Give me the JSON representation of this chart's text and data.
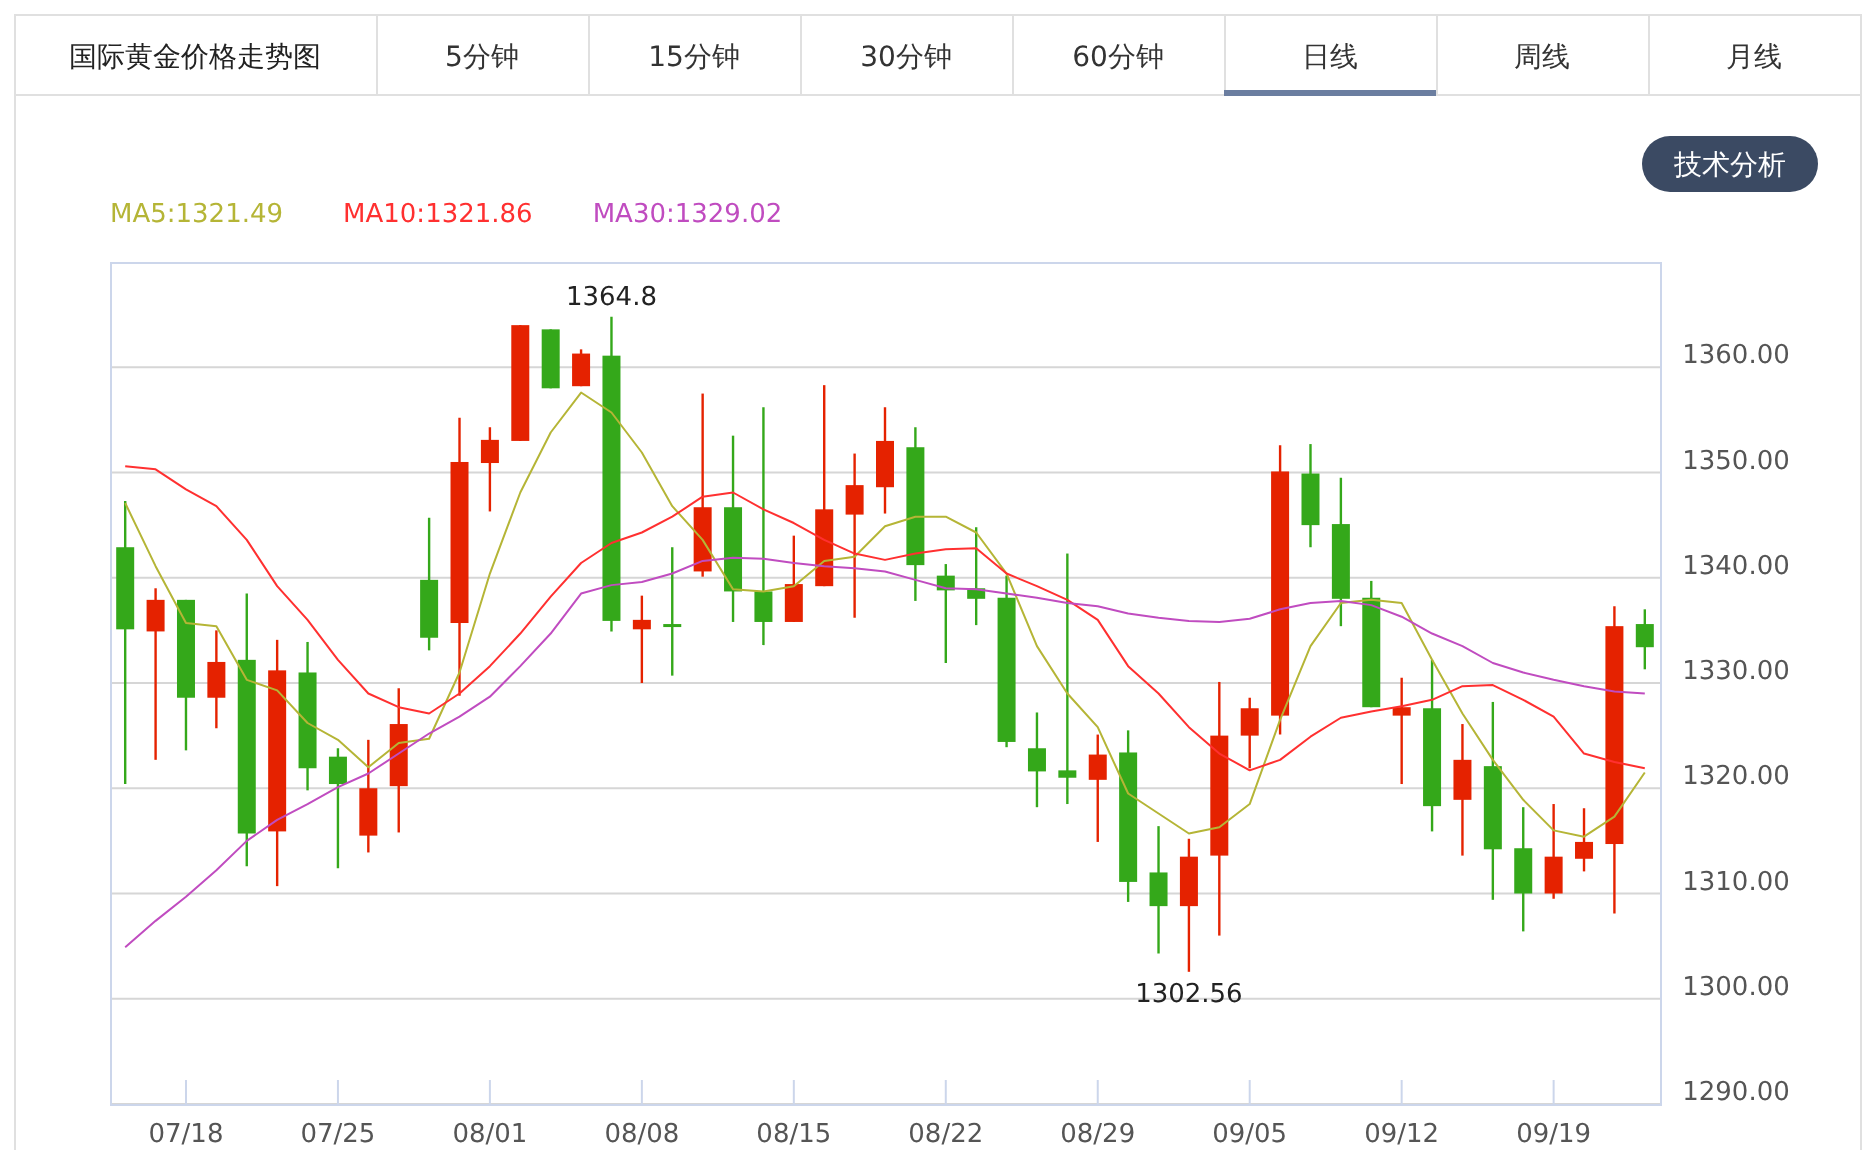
{
  "chart_data": {
    "type": "candlestick",
    "title": "国际黄金价格走势图",
    "annotations": [
      "5分钟",
      "15分钟",
      "30分钟",
      "60分钟",
      "日线",
      "周线",
      "月线",
      "技术分析",
      {
        "text": "1364.8",
        "y": 1364.8
      },
      {
        "text": "1302.56",
        "y": 1302.56
      }
    ],
    "categories": [
      null,
      null,
      "07/18",
      null,
      null,
      null,
      null,
      "07/25",
      null,
      null,
      null,
      null,
      "08/01",
      null,
      null,
      null,
      null,
      "08/08",
      null,
      null,
      null,
      null,
      "08/15",
      null,
      null,
      null,
      null,
      "08/22",
      null,
      null,
      null,
      null,
      "08/29",
      null,
      null,
      null,
      null,
      "09/05",
      null,
      null,
      null,
      null,
      "09/12",
      null,
      null,
      null,
      null,
      "09/19",
      null,
      null,
      null
    ],
    "ohlc": [
      [
        1342.9,
        1347.3,
        1320.4,
        1335.1
      ],
      [
        1334.9,
        1339.0,
        1322.7,
        1337.9
      ],
      [
        1337.9,
        1337.9,
        1323.6,
        1328.6
      ],
      [
        1328.6,
        1335.0,
        1325.7,
        1332.0
      ],
      [
        1332.2,
        1338.5,
        1312.6,
        1315.7
      ],
      [
        1315.9,
        1334.1,
        1310.7,
        1331.2
      ],
      [
        1331.0,
        1333.9,
        1319.8,
        1321.9
      ],
      [
        1323.0,
        1323.8,
        1312.4,
        1320.4
      ],
      [
        1315.5,
        1324.6,
        1313.9,
        1320.0
      ],
      [
        1320.2,
        1329.5,
        1315.8,
        1326.1
      ],
      [
        1339.8,
        1345.7,
        1333.1,
        1334.3
      ],
      [
        1335.7,
        1355.2,
        1328.8,
        1351.0
      ],
      [
        1350.9,
        1354.3,
        1346.3,
        1353.1
      ],
      [
        1353.0,
        1364.0,
        1353.0,
        1364.0
      ],
      [
        1363.6,
        1363.6,
        1358.0,
        1358.0
      ],
      [
        1358.2,
        1361.7,
        1358.2,
        1361.3
      ],
      [
        1361.1,
        1364.8,
        1334.9,
        1335.9
      ],
      [
        1335.1,
        1338.3,
        1330.0,
        1336.0
      ],
      [
        1335.6,
        1342.9,
        1330.7,
        1335.4
      ],
      [
        1340.6,
        1357.5,
        1340.1,
        1346.7
      ],
      [
        1346.7,
        1353.5,
        1335.8,
        1338.7
      ],
      [
        1338.7,
        1356.2,
        1333.6,
        1335.8
      ],
      [
        1335.8,
        1344.0,
        1335.8,
        1339.4
      ],
      [
        1339.2,
        1358.3,
        1339.2,
        1346.5
      ],
      [
        1346.0,
        1351.8,
        1336.2,
        1348.8
      ],
      [
        1348.6,
        1356.2,
        1346.1,
        1353.0
      ],
      [
        1352.4,
        1354.3,
        1337.8,
        1341.2
      ],
      [
        1340.2,
        1341.3,
        1331.9,
        1338.8
      ],
      [
        1339.0,
        1344.8,
        1335.5,
        1338.0
      ],
      [
        1338.1,
        1340.2,
        1323.9,
        1324.4
      ],
      [
        1323.8,
        1327.2,
        1318.2,
        1321.6
      ],
      [
        1321.7,
        1342.3,
        1318.5,
        1321.0
      ],
      [
        1320.8,
        1325.1,
        1314.9,
        1323.2
      ],
      [
        1323.4,
        1325.5,
        1309.2,
        1311.1
      ],
      [
        1312.0,
        1316.4,
        1304.3,
        1308.8
      ],
      [
        1308.8,
        1315.2,
        1302.56,
        1313.5
      ],
      [
        1313.6,
        1330.1,
        1306.0,
        1325.0
      ],
      [
        1325.0,
        1328.6,
        1321.9,
        1327.6
      ],
      [
        1326.9,
        1352.6,
        1325.1,
        1350.1
      ],
      [
        1349.9,
        1352.7,
        1342.9,
        1345.0
      ],
      [
        1345.1,
        1349.5,
        1335.4,
        1338.0
      ],
      [
        1338.1,
        1339.7,
        1327.7,
        1327.7
      ],
      [
        1326.9,
        1330.5,
        1320.4,
        1327.7
      ],
      [
        1327.6,
        1332.2,
        1315.9,
        1318.3
      ],
      [
        1318.9,
        1326.1,
        1313.6,
        1322.7
      ],
      [
        1322.1,
        1328.2,
        1309.4,
        1314.2
      ],
      [
        1314.3,
        1318.2,
        1306.4,
        1310.0
      ],
      [
        1310.0,
        1318.5,
        1309.5,
        1313.5
      ],
      [
        1313.3,
        1318.1,
        1312.1,
        1314.9
      ],
      [
        1314.7,
        1337.3,
        1308.1,
        1335.4
      ],
      [
        1335.6,
        1337.0,
        1331.3,
        1333.4
      ]
    ],
    "colors": [
      "#34a81a",
      "#e52200",
      "#34a81a",
      "#e52200",
      "#34a81a",
      "#e52200",
      "#34a81a",
      "#34a81a",
      "#e52200",
      "#e52200",
      "#34a81a",
      "#e52200",
      "#e52200",
      "#e52200",
      "#34a81a",
      "#e52200",
      "#34a81a",
      "#e52200",
      "#34a81a",
      "#e52200",
      "#34a81a",
      "#34a81a",
      "#e52200",
      "#e52200",
      "#e52200",
      "#e52200",
      "#34a81a",
      "#34a81a",
      "#34a81a",
      "#34a81a",
      "#34a81a",
      "#34a81a",
      "#e52200",
      "#34a81a",
      "#34a81a",
      "#e52200",
      "#e52200",
      "#e52200",
      "#e52200",
      "#34a81a",
      "#34a81a",
      "#34a81a",
      "#e52200",
      "#34a81a",
      "#e52200",
      "#34a81a",
      "#34a81a",
      "#e52200",
      "#e52200",
      "#e52200",
      "#34a81a"
    ],
    "series": [
      {
        "name": "MA5:1321.49",
        "type": "line",
        "color": "#b5b536",
        "values": [
          1347.1,
          1341.1,
          1335.7,
          1335.4,
          1330.3,
          1329.3,
          1326.2,
          1324.6,
          1322.0,
          1324.3,
          1324.7,
          1331.0,
          1340.4,
          1348.1,
          1353.8,
          1357.6,
          1355.7,
          1351.9,
          1346.8,
          1343.6,
          1338.9,
          1338.7,
          1339.2,
          1341.6,
          1342.0,
          1344.9,
          1345.8,
          1345.8,
          1344.3,
          1340.4,
          1333.5,
          1329.0,
          1325.8,
          1319.5,
          1317.6,
          1315.7,
          1316.3,
          1318.5,
          1326.5,
          1333.5,
          1337.6,
          1337.9,
          1337.6,
          1332.2,
          1327.1,
          1322.7,
          1318.9,
          1316.0,
          1315.4,
          1317.3,
          1321.5
        ]
      },
      {
        "name": "MA10:1321.86",
        "type": "line",
        "color": "#ff3030",
        "values": [
          1350.6,
          1350.3,
          1348.4,
          1346.8,
          1343.6,
          1339.2,
          1336.0,
          1332.2,
          1329.0,
          1327.7,
          1327.1,
          1329.0,
          1331.6,
          1334.7,
          1338.2,
          1341.4,
          1343.3,
          1344.3,
          1345.8,
          1347.7,
          1348.1,
          1346.5,
          1345.2,
          1343.6,
          1342.3,
          1341.7,
          1342.3,
          1342.7,
          1342.8,
          1340.4,
          1339.2,
          1337.9,
          1336.0,
          1331.6,
          1329.0,
          1325.8,
          1323.3,
          1321.7,
          1322.7,
          1324.9,
          1326.7,
          1327.3,
          1327.8,
          1328.4,
          1329.7,
          1329.8,
          1328.4,
          1326.8,
          1323.3,
          1322.5,
          1321.9
        ]
      },
      {
        "name": "MA30:1329.02",
        "type": "line",
        "color": "#c04cc0",
        "values": [
          1304.9,
          1307.4,
          1309.7,
          1312.2,
          1315.0,
          1317.0,
          1318.5,
          1320.1,
          1321.4,
          1323.3,
          1325.2,
          1326.8,
          1328.7,
          1331.6,
          1334.7,
          1338.5,
          1339.3,
          1339.6,
          1340.4,
          1341.6,
          1341.9,
          1341.8,
          1341.4,
          1341.1,
          1340.9,
          1340.6,
          1339.8,
          1339.0,
          1338.9,
          1338.5,
          1338.1,
          1337.6,
          1337.3,
          1336.6,
          1336.2,
          1335.9,
          1335.8,
          1336.1,
          1337.0,
          1337.6,
          1337.8,
          1337.4,
          1336.3,
          1334.7,
          1333.5,
          1331.9,
          1331.0,
          1330.3,
          1329.7,
          1329.2,
          1329.0
        ]
      }
    ],
    "ylim": [
      1290,
      1370
    ],
    "yticks": [
      {
        "value": 1290,
        "label": "1290.00"
      },
      {
        "value": 1300,
        "label": "1300.00"
      },
      {
        "value": 1310,
        "label": "1310.00"
      },
      {
        "value": 1320,
        "label": "1320.00"
      },
      {
        "value": 1330,
        "label": "1330.00"
      },
      {
        "value": 1340,
        "label": "1340.00"
      },
      {
        "value": 1350,
        "label": "1350.00"
      },
      {
        "value": 1360,
        "label": "1360.00"
      }
    ],
    "grid": "y",
    "legend": "top left"
  }
}
